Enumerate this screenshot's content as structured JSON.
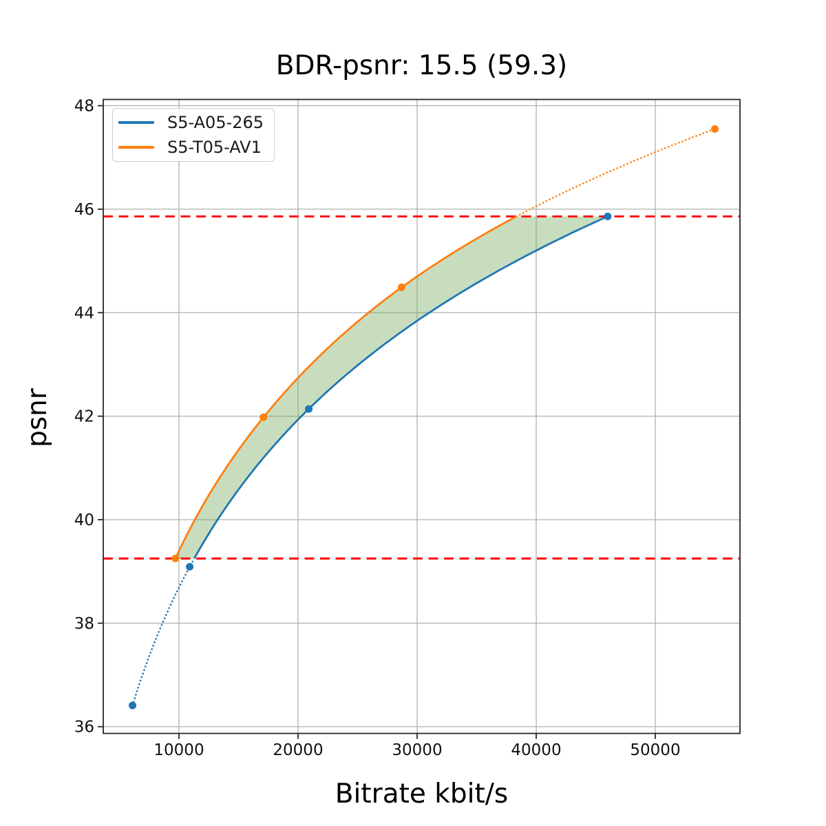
{
  "chart_data": {
    "type": "line",
    "title": "BDR-psnr: 15.5 (59.3)",
    "title_values": {
      "bdr_psnr": 15.5,
      "bdr_percent": 59.3
    },
    "xlabel": "Bitrate kbit/s",
    "ylabel": "psnr",
    "xlim": [
      3642,
      57110
    ],
    "ylim": [
      35.87,
      48.12
    ],
    "xticks": [
      10000,
      20000,
      30000,
      40000,
      50000
    ],
    "yticks": [
      36,
      38,
      40,
      42,
      44,
      46,
      48
    ],
    "grid": true,
    "legend_position": "upper-left",
    "interpolation": "pchip-on-log-bitrate",
    "series": [
      {
        "name": "S5-A05-265",
        "color": "#1f77b4",
        "marker": "circle",
        "points": [
          [
            6100,
            36.41
          ],
          [
            10900,
            39.09
          ],
          [
            20900,
            42.14
          ],
          [
            46000,
            45.86
          ]
        ]
      },
      {
        "name": "S5-T05-AV1",
        "color": "#ff7f0e",
        "marker": "circle",
        "points": [
          [
            9700,
            39.25
          ],
          [
            17100,
            41.98
          ],
          [
            28700,
            44.49
          ],
          [
            55000,
            47.55
          ]
        ]
      }
    ],
    "psnr_bounds": {
      "values": [
        39.25,
        45.86
      ],
      "color": "#ff0000",
      "style": "dashed"
    },
    "overlap_fill": {
      "color": "#74ab5c",
      "opacity": 0.4,
      "psnr_range": [
        39.25,
        45.86
      ]
    },
    "style": {
      "grid_color": "#b0b0b0",
      "spine_color": "#262626",
      "tick_label_color": "#111111",
      "background": "#ffffff"
    }
  }
}
